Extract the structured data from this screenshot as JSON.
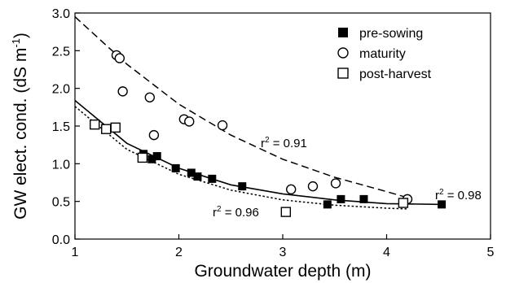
{
  "chart_data": {
    "type": "scatter",
    "xlabel": "Groundwater depth (m)",
    "ylabel": {
      "main": "GW elect. cond. (dS m",
      "sup": "-1",
      "close": ")"
    },
    "xlim": [
      1,
      5
    ],
    "ylim": [
      0,
      3
    ],
    "x_ticks": [
      1,
      2,
      3,
      4,
      5
    ],
    "y_ticks": [
      0.0,
      0.5,
      1.0,
      1.5,
      2.0,
      2.5,
      3.0
    ],
    "x_tick_labels": [
      "1",
      "2",
      "3",
      "4",
      "5"
    ],
    "y_tick_labels": [
      "0.0",
      "0.5",
      "1.0",
      "1.5",
      "2.0",
      "2.5",
      "3.0"
    ],
    "grid": false,
    "legend_position": "top-right",
    "series": [
      {
        "name": "pre-sowing",
        "marker": "filled-square",
        "points": [
          [
            1.66,
            1.13
          ],
          [
            1.74,
            1.06
          ],
          [
            1.79,
            1.1
          ],
          [
            1.97,
            0.94
          ],
          [
            2.12,
            0.88
          ],
          [
            2.18,
            0.83
          ],
          [
            2.32,
            0.8
          ],
          [
            2.61,
            0.7
          ],
          [
            3.43,
            0.46
          ],
          [
            3.56,
            0.53
          ],
          [
            3.78,
            0.53
          ],
          [
            4.53,
            0.46
          ]
        ],
        "fit": {
          "line": "solid",
          "r2_label": "r",
          "r2_sup": "2",
          "r2_value": " = 0.98",
          "x_range": [
            1.0,
            4.55
          ],
          "curve": [
            [
              1.0,
              1.84
            ],
            [
              1.5,
              1.27
            ],
            [
              2.0,
              0.94
            ],
            [
              2.5,
              0.72
            ],
            [
              3.0,
              0.6
            ],
            [
              3.5,
              0.52
            ],
            [
              4.0,
              0.47
            ],
            [
              4.55,
              0.46
            ]
          ]
        }
      },
      {
        "name": "maturity",
        "marker": "open-circle",
        "points": [
          [
            1.4,
            2.44
          ],
          [
            1.43,
            2.4
          ],
          [
            1.46,
            1.96
          ],
          [
            1.72,
            1.88
          ],
          [
            1.76,
            1.38
          ],
          [
            2.05,
            1.59
          ],
          [
            2.1,
            1.56
          ],
          [
            2.42,
            1.51
          ],
          [
            3.08,
            0.66
          ],
          [
            3.29,
            0.7
          ],
          [
            3.51,
            0.74
          ],
          [
            4.2,
            0.53
          ]
        ],
        "fit": {
          "line": "dashed",
          "r2_label": "r",
          "r2_sup": "2",
          "r2_value": " = 0.91",
          "x_range": [
            1.0,
            4.2
          ],
          "curve": [
            [
              1.0,
              2.95
            ],
            [
              1.5,
              2.32
            ],
            [
              2.0,
              1.79
            ],
            [
              2.5,
              1.38
            ],
            [
              3.0,
              1.06
            ],
            [
              3.5,
              0.82
            ],
            [
              4.0,
              0.63
            ],
            [
              4.2,
              0.55
            ]
          ]
        }
      },
      {
        "name": "post-harvest",
        "marker": "open-square",
        "points": [
          [
            1.19,
            1.52
          ],
          [
            1.3,
            1.46
          ],
          [
            1.39,
            1.48
          ],
          [
            1.65,
            1.08
          ],
          [
            3.03,
            0.36
          ],
          [
            4.16,
            0.48
          ]
        ],
        "fit": {
          "line": "dotted",
          "r2_label": "r",
          "r2_sup": "2",
          "r2_value": " = 0.96",
          "x_range": [
            1.0,
            4.2
          ],
          "curve": [
            [
              1.0,
              1.76
            ],
            [
              1.5,
              1.19
            ],
            [
              2.0,
              0.86
            ],
            [
              2.5,
              0.65
            ],
            [
              3.0,
              0.52
            ],
            [
              3.5,
              0.45
            ],
            [
              4.0,
              0.41
            ],
            [
              4.2,
              0.4
            ]
          ]
        }
      }
    ]
  }
}
